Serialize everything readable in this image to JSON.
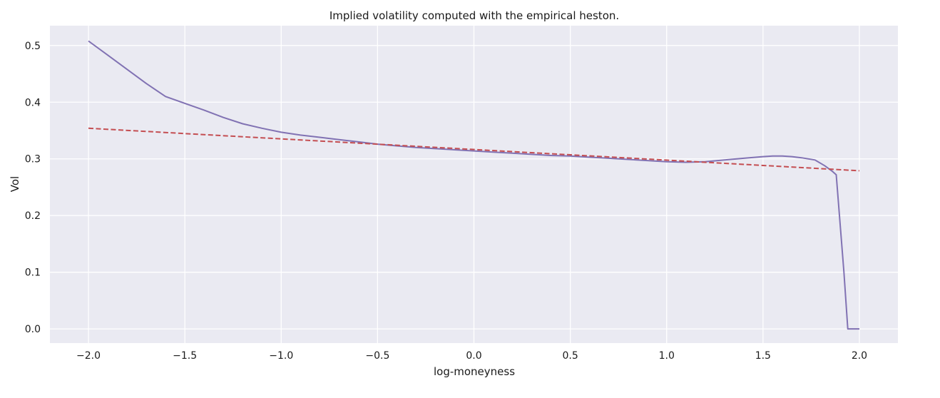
{
  "chart_data": {
    "type": "line",
    "title": "Implied volatility computed with the empirical heston.",
    "xlabel": "log-moneyness",
    "ylabel": "Vol",
    "xlim": [
      -2.2,
      2.2
    ],
    "ylim": [
      -0.025,
      0.535
    ],
    "xticks": [
      -2.0,
      -1.5,
      -1.0,
      -0.5,
      0.0,
      0.5,
      1.0,
      1.5,
      2.0
    ],
    "xtick_labels": [
      "−2.0",
      "−1.5",
      "−1.0",
      "−0.5",
      "0.0",
      "0.5",
      "1.0",
      "1.5",
      "2.0"
    ],
    "yticks": [
      0.0,
      0.1,
      0.2,
      0.3,
      0.4,
      0.5
    ],
    "ytick_labels": [
      "0.0",
      "0.1",
      "0.2",
      "0.3",
      "0.4",
      "0.5"
    ],
    "grid": true,
    "background": "#eaeaf2",
    "grid_color": "#ffffff",
    "series": [
      {
        "style": "solid",
        "color": "#8172b3",
        "x": [
          -2.0,
          -1.9,
          -1.8,
          -1.7,
          -1.6,
          -1.5,
          -1.4,
          -1.3,
          -1.2,
          -1.1,
          -1.0,
          -0.9,
          -0.8,
          -0.7,
          -0.6,
          -0.5,
          -0.4,
          -0.3,
          -0.2,
          -0.1,
          0.0,
          0.1,
          0.2,
          0.3,
          0.4,
          0.5,
          0.6,
          0.7,
          0.8,
          0.9,
          1.0,
          1.1,
          1.2,
          1.3,
          1.4,
          1.5,
          1.55,
          1.6,
          1.65,
          1.7,
          1.77,
          1.82,
          1.86,
          1.88,
          1.92,
          1.94,
          1.97,
          2.0
        ],
        "y": [
          0.508,
          0.483,
          0.458,
          0.433,
          0.41,
          0.398,
          0.386,
          0.373,
          0.362,
          0.354,
          0.347,
          0.342,
          0.338,
          0.334,
          0.33,
          0.326,
          0.323,
          0.32,
          0.318,
          0.316,
          0.314,
          0.312,
          0.31,
          0.308,
          0.306,
          0.305,
          0.303,
          0.301,
          0.299,
          0.297,
          0.295,
          0.294,
          0.295,
          0.298,
          0.301,
          0.304,
          0.305,
          0.305,
          0.304,
          0.302,
          0.298,
          0.288,
          0.278,
          0.272,
          0.1,
          0.0,
          0.0,
          0.0
        ]
      },
      {
        "style": "dashed",
        "color": "#c44e52",
        "x": [
          -2.0,
          2.0
        ],
        "y": [
          0.354,
          0.279
        ]
      }
    ]
  }
}
